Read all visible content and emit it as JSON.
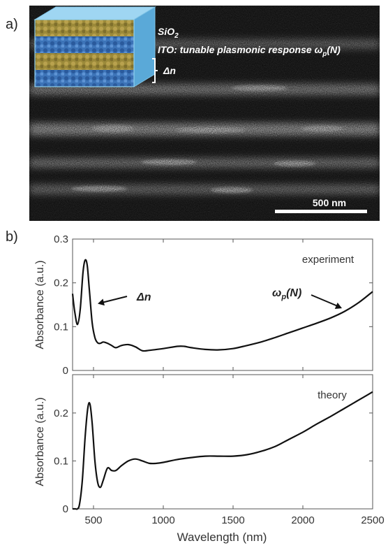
{
  "panel_a": {
    "label": "a)",
    "layer1": "SiO",
    "layer1_sub": "2",
    "layer2_pre": "ITO: tunable plasmonic response ω",
    "layer2_sub": "p",
    "layer2_post": "(N)",
    "period_label": "Δn",
    "scalebar_label": "500 nm"
  },
  "panel_b": {
    "label": "b)",
    "xlabel": "Wavelength (nm)",
    "x_ticks": [
      "500",
      "1000",
      "1500",
      "2000",
      "2500"
    ],
    "top": {
      "ylabel": "Absorbance (a.u.)",
      "y_ticks": [
        "0",
        "0.1",
        "0.2",
        "0.3"
      ],
      "name": "experiment",
      "ann_dn": "Δn",
      "ann_wp": "ω",
      "ann_wp_sub": "p",
      "ann_wp_post": "(N)"
    },
    "bottom": {
      "ylabel": "Absorbance (a.u.)",
      "y_ticks": [
        "0",
        "0.1",
        "0.2"
      ],
      "name": "theory"
    }
  },
  "chart_data": [
    {
      "type": "line",
      "panel": "top",
      "xlabel": "Wavelength (nm)",
      "ylabel": "Absorbance (a.u.)",
      "xlim": [
        350,
        2500
      ],
      "ylim": [
        0,
        0.3
      ],
      "series": [
        {
          "name": "experiment",
          "x": [
            350,
            365,
            385,
            405,
            425,
            440,
            455,
            470,
            490,
            510,
            530,
            550,
            570,
            600,
            630,
            660,
            700,
            750,
            800,
            850,
            900,
            1000,
            1100,
            1150,
            1200,
            1300,
            1400,
            1500,
            1600,
            1700,
            1800,
            1900,
            2000,
            2100,
            2200,
            2300,
            2400,
            2500
          ],
          "y": [
            0.175,
            0.135,
            0.105,
            0.14,
            0.225,
            0.252,
            0.24,
            0.185,
            0.11,
            0.075,
            0.063,
            0.062,
            0.065,
            0.062,
            0.057,
            0.052,
            0.057,
            0.059,
            0.054,
            0.045,
            0.046,
            0.05,
            0.055,
            0.055,
            0.052,
            0.048,
            0.047,
            0.05,
            0.057,
            0.065,
            0.075,
            0.086,
            0.097,
            0.108,
            0.12,
            0.135,
            0.155,
            0.18
          ]
        }
      ]
    },
    {
      "type": "line",
      "panel": "bottom",
      "xlabel": "Wavelength (nm)",
      "ylabel": "Absorbance (a.u.)",
      "xlim": [
        350,
        2500
      ],
      "ylim": [
        0,
        0.28
      ],
      "series": [
        {
          "name": "theory",
          "x": [
            350,
            370,
            385,
            400,
            420,
            440,
            460,
            475,
            490,
            510,
            530,
            550,
            570,
            600,
            630,
            660,
            700,
            750,
            800,
            850,
            900,
            950,
            1000,
            1100,
            1200,
            1300,
            1400,
            1500,
            1600,
            1700,
            1800,
            1900,
            2000,
            2100,
            2200,
            2300,
            2400,
            2500
          ],
          "y": [
            0.0,
            0.0,
            0.0,
            0.01,
            0.06,
            0.15,
            0.212,
            0.218,
            0.18,
            0.1,
            0.055,
            0.045,
            0.06,
            0.085,
            0.08,
            0.08,
            0.09,
            0.1,
            0.104,
            0.1,
            0.095,
            0.095,
            0.097,
            0.103,
            0.107,
            0.11,
            0.11,
            0.11,
            0.113,
            0.12,
            0.13,
            0.145,
            0.16,
            0.177,
            0.193,
            0.21,
            0.227,
            0.244
          ]
        }
      ]
    }
  ]
}
